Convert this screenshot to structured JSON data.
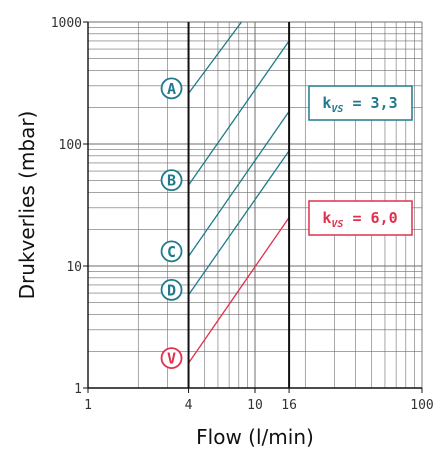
{
  "chart_data": {
    "type": "line",
    "xlabel": "Flow (l/min)",
    "ylabel": "Drukverlies (mbar)",
    "x_scale": "log",
    "y_scale": "log",
    "xlim": [
      1,
      100
    ],
    "ylim": [
      1,
      1000
    ],
    "x_ticks": [
      "1",
      "4",
      "10",
      "16",
      "100"
    ],
    "y_ticks": [
      "1",
      "10",
      "100",
      "1000"
    ],
    "grid": true,
    "emphasized_x": [
      4,
      16
    ],
    "series": [
      {
        "name": "A",
        "color": "#1f7a8c",
        "x": [
          4,
          8.3
        ],
        "y": [
          260,
          1000
        ]
      },
      {
        "name": "B",
        "color": "#1f7a8c",
        "x": [
          4,
          16
        ],
        "y": [
          46,
          700
        ]
      },
      {
        "name": "C",
        "color": "#1f7a8c",
        "x": [
          4,
          16
        ],
        "y": [
          12,
          185
        ]
      },
      {
        "name": "D",
        "color": "#1f7a8c",
        "x": [
          4,
          16
        ],
        "y": [
          5.8,
          88
        ]
      },
      {
        "name": "V",
        "color": "#e0304e",
        "x": [
          4,
          16
        ],
        "y": [
          1.6,
          25
        ]
      }
    ],
    "legend": [
      {
        "k": "k",
        "sub": "VS",
        "value": "= 3,3",
        "color": "#1f7a8c"
      },
      {
        "k": "k",
        "sub": "VS",
        "value": "= 6,0",
        "color": "#e0304e"
      }
    ]
  }
}
